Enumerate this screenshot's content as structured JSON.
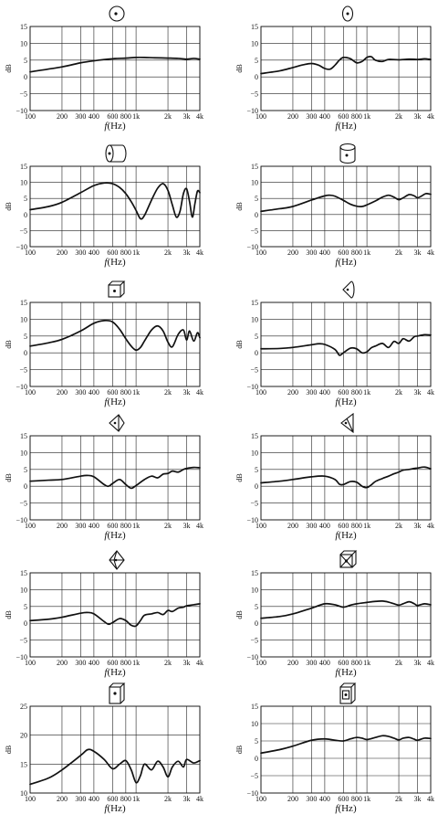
{
  "chart_data": [
    {
      "type": "line",
      "shape": "sphere",
      "ylim": [
        -10,
        15
      ],
      "yticks": [
        15,
        10,
        5,
        0,
        -5,
        -10
      ],
      "ylabel": "dB",
      "xlabel": "f (Hz)",
      "grid": true,
      "xticks": [
        "100",
        "200",
        "300",
        "400",
        "600",
        "800",
        "1k",
        "2k",
        "3k",
        "4k"
      ],
      "series": [
        {
          "x": [
            100,
            200,
            300,
            400,
            600,
            800,
            1000,
            1200,
            1500,
            2000,
            2500,
            3000,
            3500,
            4000
          ],
          "y": [
            1.5,
            3,
            4.2,
            4.8,
            5.4,
            5.6,
            5.8,
            5.8,
            5.7,
            5.6,
            5.5,
            5.3,
            5.5,
            5.3
          ]
        }
      ]
    },
    {
      "type": "line",
      "shape": "small-sphere",
      "ylim": [
        -10,
        15
      ],
      "yticks": [
        15,
        10,
        5,
        0,
        -5,
        -10
      ],
      "ylabel": "dB",
      "xlabel": "f (Hz)",
      "grid": true,
      "xticks": [
        "100",
        "200",
        "300",
        "400",
        "600",
        "800",
        "1k",
        "2k",
        "3k",
        "4k"
      ],
      "series": [
        {
          "x": [
            100,
            150,
            200,
            250,
            300,
            350,
            400,
            450,
            500,
            550,
            600,
            700,
            800,
            900,
            1000,
            1100,
            1200,
            1400,
            1600,
            2000,
            2500,
            3000,
            3500,
            4000
          ],
          "y": [
            1,
            1.8,
            2.8,
            3.6,
            4,
            3.5,
            2.5,
            2.3,
            3.5,
            5,
            5.8,
            5.4,
            4.2,
            4.6,
            5.8,
            6,
            5,
            4.6,
            5.2,
            5.1,
            5.3,
            5.2,
            5.4,
            5.2
          ]
        }
      ]
    },
    {
      "type": "line",
      "shape": "cylinder-side",
      "ylim": [
        -10,
        15
      ],
      "yticks": [
        15,
        10,
        5,
        0,
        -5,
        -10
      ],
      "ylabel": "dB",
      "xlabel": "f (Hz)",
      "grid": true,
      "xticks": [
        "100",
        "200",
        "300",
        "400",
        "600",
        "800",
        "1k",
        "2k",
        "3k",
        "4k"
      ],
      "series": [
        {
          "x": [
            100,
            150,
            200,
            300,
            400,
            500,
            600,
            700,
            800,
            900,
            1000,
            1100,
            1200,
            1400,
            1600,
            1800,
            2000,
            2200,
            2400,
            2600,
            2800,
            3000,
            3200,
            3400,
            3600,
            3800,
            4000
          ],
          "y": [
            1.5,
            2.5,
            3.8,
            6.8,
            9,
            9.8,
            9.6,
            8.4,
            6.5,
            4,
            1.3,
            -1.3,
            -0.3,
            4.5,
            8.2,
            9.6,
            7.5,
            3,
            -0.8,
            1,
            6.5,
            8,
            4,
            -0.8,
            3.5,
            7.3,
            6.8
          ]
        }
      ]
    },
    {
      "type": "line",
      "shape": "cylinder-top",
      "ylim": [
        -10,
        15
      ],
      "yticks": [
        15,
        10,
        5,
        0,
        -5,
        -10
      ],
      "ylabel": "dB",
      "xlabel": "f (Hz)",
      "grid": true,
      "xticks": [
        "100",
        "200",
        "300",
        "400",
        "600",
        "800",
        "1k",
        "2k",
        "3k",
        "4k"
      ],
      "series": [
        {
          "x": [
            100,
            150,
            200,
            300,
            400,
            450,
            500,
            600,
            700,
            800,
            900,
            1000,
            1200,
            1400,
            1600,
            1800,
            2000,
            2200,
            2500,
            2800,
            3000,
            3300,
            3600,
            4000
          ],
          "y": [
            1,
            1.8,
            2.5,
            4.5,
            5.8,
            6,
            5.7,
            4.4,
            3.2,
            2.6,
            2.5,
            3,
            4.2,
            5.4,
            6,
            5.4,
            4.6,
            5.2,
            6.2,
            5.8,
            5.2,
            5.8,
            6.5,
            6.3
          ]
        }
      ]
    },
    {
      "type": "line",
      "shape": "cube-face",
      "ylim": [
        -10,
        15
      ],
      "yticks": [
        15,
        10,
        5,
        0,
        -5,
        -10
      ],
      "ylabel": "dB",
      "xlabel": "f (Hz)",
      "grid": true,
      "xticks": [
        "100",
        "200",
        "300",
        "400",
        "600",
        "800",
        "1k",
        "2k",
        "3k",
        "4k"
      ],
      "series": [
        {
          "x": [
            100,
            150,
            200,
            300,
            400,
            500,
            600,
            700,
            800,
            900,
            1000,
            1100,
            1200,
            1400,
            1600,
            1800,
            2000,
            2200,
            2500,
            2800,
            3000,
            3200,
            3500,
            3800,
            4000
          ],
          "y": [
            2,
            3,
            4,
            6.5,
            8.8,
            9.6,
            9.2,
            7,
            4.2,
            2,
            0.8,
            1.6,
            3.5,
            6.8,
            8,
            6.5,
            3.2,
            1.8,
            5.5,
            6.8,
            3.8,
            6.5,
            3.5,
            6,
            4.5
          ]
        }
      ]
    },
    {
      "type": "line",
      "shape": "half-cone",
      "ylim": [
        -10,
        15
      ],
      "yticks": [
        15,
        10,
        5,
        0,
        -5,
        -10
      ],
      "ylabel": "dB",
      "xlabel": "f (Hz)",
      "grid": true,
      "xticks": [
        "100",
        "200",
        "300",
        "400",
        "600",
        "800",
        "1k",
        "2k",
        "3k",
        "4k"
      ],
      "series": [
        {
          "x": [
            100,
            150,
            200,
            300,
            350,
            400,
            500,
            550,
            600,
            700,
            800,
            900,
            1000,
            1100,
            1200,
            1400,
            1600,
            1800,
            2000,
            2200,
            2500,
            2800,
            3000,
            3500,
            4000
          ],
          "y": [
            1.2,
            1.3,
            1.6,
            2.4,
            2.7,
            2.5,
            1,
            -0.7,
            0,
            1.4,
            1.2,
            0,
            0.3,
            1.5,
            2,
            2.8,
            1.6,
            3.4,
            2.8,
            4.2,
            3.5,
            4.8,
            5,
            5.4,
            5.3
          ]
        }
      ]
    },
    {
      "type": "line",
      "shape": "double-cone",
      "ylim": [
        -10,
        15
      ],
      "yticks": [
        15,
        10,
        5,
        0,
        -5,
        -10
      ],
      "ylabel": "dB",
      "xlabel": "f (Hz)",
      "grid": true,
      "xticks": [
        "100",
        "200",
        "300",
        "400",
        "600",
        "800",
        "1k",
        "2k",
        "3k",
        "4k"
      ],
      "series": [
        {
          "x": [
            100,
            150,
            200,
            300,
            350,
            400,
            500,
            550,
            600,
            700,
            800,
            900,
            1000,
            1200,
            1400,
            1600,
            1800,
            2000,
            2200,
            2500,
            2800,
            3000,
            3500,
            4000
          ],
          "y": [
            1.5,
            1.8,
            2,
            3,
            3.2,
            2.8,
            0.5,
            0,
            0.8,
            2,
            0.5,
            -0.6,
            0.2,
            2,
            3,
            2.5,
            3.6,
            3.8,
            4.5,
            4.2,
            5,
            5.3,
            5.6,
            5.5
          ]
        }
      ]
    },
    {
      "type": "line",
      "shape": "cone-cut",
      "ylim": [
        -10,
        15
      ],
      "yticks": [
        15,
        10,
        5,
        0,
        -5,
        -10
      ],
      "ylabel": "dB",
      "xlabel": "f (Hz)",
      "grid": true,
      "xticks": [
        "100",
        "200",
        "300",
        "400",
        "600",
        "800",
        "1k",
        "2k",
        "3k",
        "4k"
      ],
      "series": [
        {
          "x": [
            100,
            150,
            200,
            300,
            400,
            500,
            550,
            600,
            700,
            800,
            900,
            1000,
            1100,
            1200,
            1400,
            1600,
            1800,
            2000,
            2200,
            2500,
            2800,
            3000,
            3500,
            4000
          ],
          "y": [
            1,
            1.5,
            2,
            2.8,
            3,
            2,
            0.6,
            0.5,
            1.4,
            1.2,
            0,
            -0.4,
            0.4,
            1.4,
            2.3,
            3,
            3.7,
            4.2,
            4.8,
            5,
            5.3,
            5.4,
            5.7,
            5.2
          ]
        }
      ]
    },
    {
      "type": "line",
      "shape": "diamond",
      "ylim": [
        -10,
        15
      ],
      "yticks": [
        15,
        10,
        5,
        0,
        -5,
        -10
      ],
      "ylabel": "dB",
      "xlabel": "f (Hz)",
      "grid": true,
      "xticks": [
        "100",
        "200",
        "300",
        "400",
        "600",
        "800",
        "1k",
        "2k",
        "3k",
        "4k"
      ],
      "series": [
        {
          "x": [
            100,
            150,
            200,
            300,
            350,
            400,
            500,
            550,
            600,
            700,
            800,
            900,
            1000,
            1100,
            1200,
            1400,
            1600,
            1800,
            2000,
            2200,
            2500,
            2800,
            3000,
            3500,
            4000
          ],
          "y": [
            0.8,
            1.2,
            1.8,
            3,
            3.2,
            2.8,
            0.5,
            -0.3,
            0.2,
            1.4,
            0.8,
            -0.6,
            -0.8,
            0.8,
            2.4,
            2.8,
            3.2,
            2.6,
            3.8,
            3.5,
            4.5,
            4.8,
            5.2,
            5.5,
            5.8
          ]
        }
      ]
    },
    {
      "type": "line",
      "shape": "box-pyramid",
      "ylim": [
        -10,
        15
      ],
      "yticks": [
        15,
        10,
        5,
        0,
        -5,
        -10
      ],
      "ylabel": "dB",
      "xlabel": "f (Hz)",
      "grid": true,
      "xticks": [
        "100",
        "200",
        "300",
        "400",
        "600",
        "800",
        "1k",
        "2k",
        "3k",
        "4k"
      ],
      "series": [
        {
          "x": [
            100,
            150,
            200,
            300,
            400,
            500,
            600,
            700,
            800,
            1000,
            1200,
            1400,
            1600,
            1800,
            2000,
            2200,
            2500,
            2800,
            3000,
            3500,
            4000
          ],
          "y": [
            1.5,
            2,
            2.8,
            4.5,
            5.8,
            5.5,
            4.8,
            5.4,
            5.8,
            6.2,
            6.5,
            6.6,
            6.3,
            5.8,
            5.4,
            5.8,
            6.4,
            5.8,
            5.3,
            5.8,
            5.5
          ]
        }
      ]
    },
    {
      "type": "line",
      "shape": "tall-box",
      "ylim": [
        10,
        25
      ],
      "yticks": [
        25,
        20,
        15,
        10
      ],
      "ylabel": "dB",
      "xlabel": "f (Hz)",
      "grid": true,
      "xticks": [
        "100",
        "200",
        "300",
        "400",
        "600",
        "800",
        "1k",
        "2k",
        "3k",
        "4k"
      ],
      "series": [
        {
          "x": [
            100,
            150,
            200,
            300,
            350,
            400,
            500,
            600,
            700,
            800,
            900,
            1000,
            1100,
            1200,
            1400,
            1600,
            1800,
            2000,
            2200,
            2500,
            2800,
            3000,
            3500,
            4000
          ],
          "y": [
            11.5,
            12.6,
            14,
            16.5,
            17.5,
            17.2,
            15.8,
            14.2,
            15,
            15.6,
            14,
            11.8,
            13,
            15,
            14,
            15.5,
            14.5,
            12.8,
            14.5,
            15.5,
            14.5,
            15.8,
            15.2,
            15.6
          ]
        }
      ]
    },
    {
      "type": "line",
      "shape": "tall-box-woofer",
      "ylim": [
        -10,
        15
      ],
      "yticks": [
        15,
        10,
        5,
        0,
        -5,
        -10
      ],
      "ylabel": "dB",
      "xlabel": "f (Hz)",
      "grid": true,
      "xticks": [
        "100",
        "200",
        "300",
        "400",
        "600",
        "800",
        "1k",
        "2k",
        "3k",
        "4k"
      ],
      "series": [
        {
          "x": [
            100,
            150,
            200,
            300,
            400,
            500,
            600,
            700,
            800,
            900,
            1000,
            1200,
            1400,
            1600,
            1800,
            2000,
            2200,
            2500,
            2800,
            3000,
            3500,
            4000
          ],
          "y": [
            1.5,
            2.5,
            3.5,
            5.2,
            5.6,
            5.2,
            5,
            5.6,
            6,
            5.8,
            5.4,
            6,
            6.5,
            6.3,
            5.8,
            5.3,
            5.8,
            6,
            5.5,
            5.2,
            5.8,
            5.7
          ]
        }
      ]
    }
  ]
}
